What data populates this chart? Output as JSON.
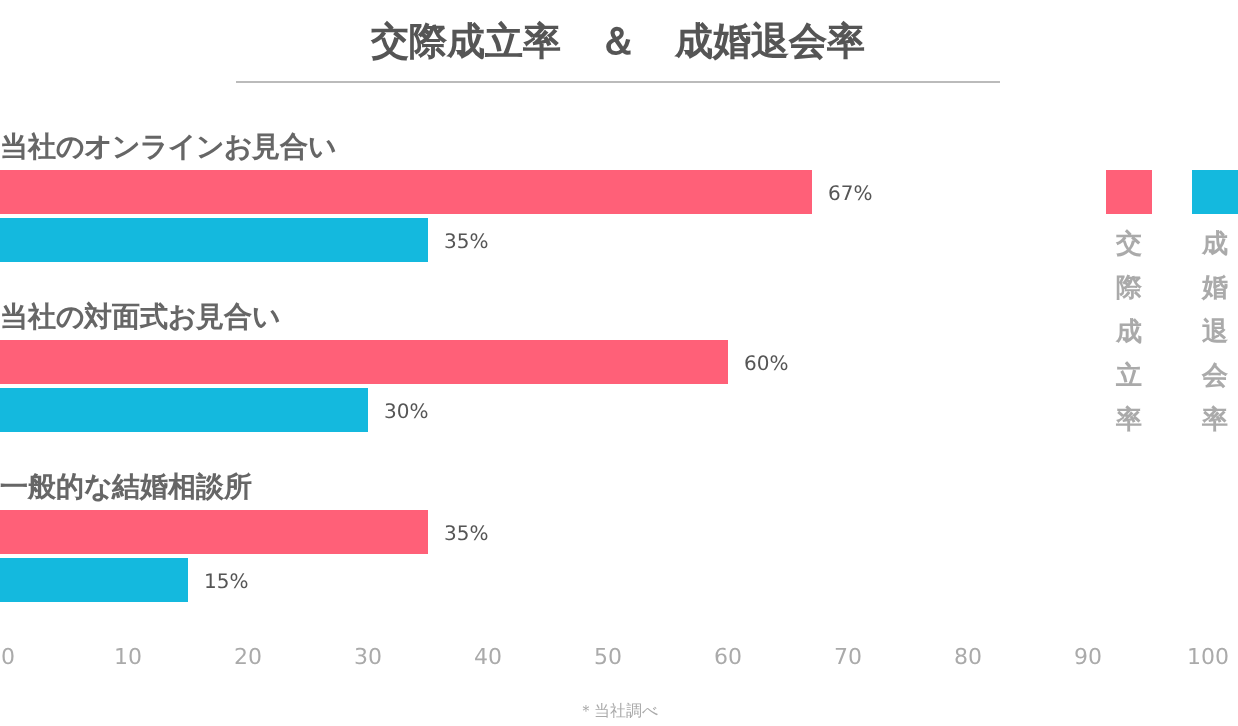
{
  "chart_data": {
    "type": "bar",
    "orientation": "horizontal",
    "title": "交際成立率　＆　成婚退会率",
    "categories": [
      "当社のオンラインお見合い",
      "当社の対面式お見合い",
      "一般的な結婚相談所"
    ],
    "series": [
      {
        "name": "交際成立率",
        "color": "#ff6078",
        "values": [
          67,
          60,
          35
        ],
        "value_labels": [
          "67%",
          "60%",
          "35%"
        ]
      },
      {
        "name": "成婚退会率",
        "color": "#14b9de",
        "values": [
          35,
          30,
          15
        ],
        "value_labels": [
          "35%",
          "30%",
          "15%"
        ]
      }
    ],
    "xlim": [
      0,
      100
    ],
    "xticks": [
      0,
      10,
      20,
      30,
      40,
      50,
      60,
      70,
      80,
      90,
      100
    ],
    "grid": false,
    "legend": "right",
    "annotations": [
      "＊当社調べ"
    ]
  }
}
